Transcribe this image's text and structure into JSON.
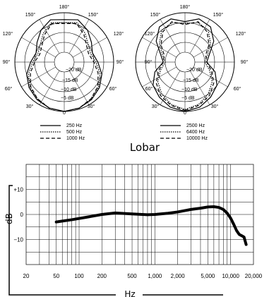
{
  "chart_data": [
    {
      "type": "polar",
      "angle_labels": [
        "180°",
        "150°",
        "150°",
        "120°",
        "120°",
        "90°",
        "90°",
        "60°",
        "60°",
        "30°",
        "30°",
        "0"
      ],
      "ring_labels": [
        "−20 dB",
        "−15 dB",
        "−10 dB",
        "−5 dB"
      ],
      "series": [
        {
          "name": "250 Hz",
          "style": "solid",
          "db": [
            0,
            -0.5,
            -1.5,
            -3,
            -5,
            -8,
            -10,
            -8,
            -5,
            -2.5,
            -3.5
          ]
        },
        {
          "name": "500 Hz",
          "style": "dotted",
          "db": [
            0,
            -0.5,
            -2,
            -3.5,
            -6,
            -9,
            -11,
            -10,
            -7,
            -4,
            -5
          ]
        },
        {
          "name": "1000 Hz",
          "style": "dashed",
          "db": [
            0,
            -0.5,
            -2,
            -4,
            -7,
            -10,
            -12,
            -11,
            -8,
            -4.5,
            -5.5
          ]
        }
      ]
    },
    {
      "type": "polar",
      "angle_labels": [
        "180°",
        "150°",
        "150°",
        "120°",
        "120°",
        "90°",
        "90°",
        "60°",
        "60°",
        "30°",
        "30°",
        "0"
      ],
      "ring_labels": [
        "−20 dB",
        "−15 dB",
        "−10 dB",
        "−5 dB"
      ],
      "series": [
        {
          "name": "2500 Hz",
          "style": "solid",
          "db": [
            0,
            -1,
            -3,
            -5,
            -9,
            -14,
            -12,
            -7,
            -3,
            -2,
            -4.5
          ]
        },
        {
          "name": "6400 Hz",
          "style": "dotted",
          "db": [
            -1,
            -2.5,
            -5,
            -8,
            -12,
            -15,
            -13,
            -9,
            -5,
            -4,
            -5.5
          ]
        },
        {
          "name": "10000 Hz",
          "style": "dashed",
          "db": [
            -0.5,
            -2,
            -4,
            -7,
            -11,
            -14,
            -14,
            -10,
            -6,
            -3.5,
            -6
          ]
        }
      ]
    },
    {
      "type": "line",
      "title": "Lobar",
      "xlabel": "Hz",
      "ylabel": "dB",
      "x_scale": "log",
      "xlim": [
        20,
        20000
      ],
      "ylim": [
        -20,
        20
      ],
      "x_tick_labels": [
        "20",
        "50",
        "100",
        "200",
        "500",
        "1,000",
        "2,000",
        "5,000",
        "10,000",
        "20,000"
      ],
      "x_tick_values": [
        20,
        50,
        100,
        200,
        500,
        1000,
        2000,
        5000,
        10000,
        20000
      ],
      "y_tick_labels": [
        "+10",
        "0",
        "−10"
      ],
      "y_tick_values": [
        10,
        0,
        -10
      ],
      "series": [
        {
          "x": [
            50,
            80,
            120,
            200,
            300,
            500,
            800,
            1000,
            1500,
            2000,
            3000,
            4000,
            5000,
            6000,
            7000,
            8000,
            9000,
            10000,
            11000,
            12000,
            13000,
            14000,
            15000,
            16000
          ],
          "y": [
            -3,
            -2.1,
            -1.2,
            0,
            0.6,
            0.2,
            -0.1,
            0,
            0.5,
            1,
            2,
            2.5,
            3,
            3.1,
            2.8,
            2,
            0.5,
            -1.5,
            -4,
            -6.5,
            -8,
            -8.5,
            -9,
            -12
          ]
        }
      ]
    }
  ]
}
